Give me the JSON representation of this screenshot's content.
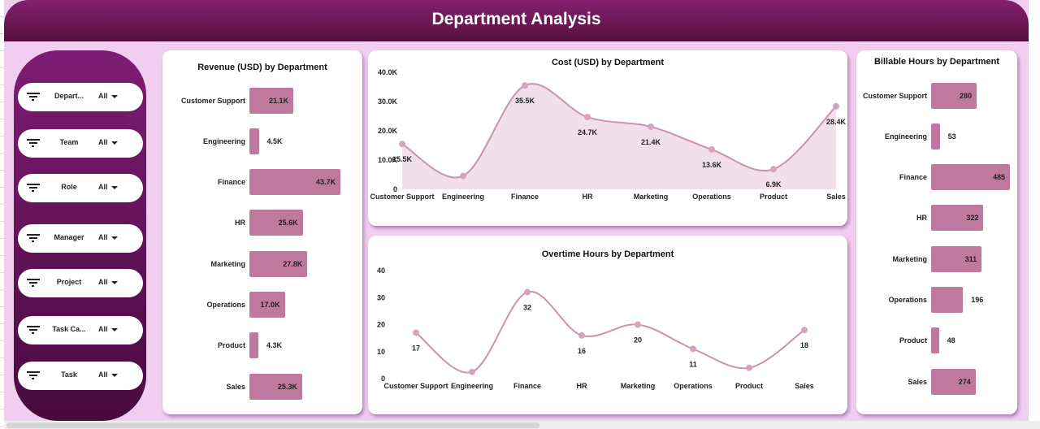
{
  "header": {
    "title": "Department Analysis"
  },
  "slicers": [
    {
      "label": "Depart...",
      "value": "All"
    },
    {
      "label": "Team",
      "value": "All"
    },
    {
      "label": "Role",
      "value": "All"
    },
    {
      "label": "Manager",
      "value": "All"
    },
    {
      "label": "Project",
      "value": "All"
    },
    {
      "label": "Task Ca...",
      "value": "All"
    },
    {
      "label": "Task",
      "value": "All"
    }
  ],
  "colors": {
    "header": "#7b1a6c",
    "bar": "#c0799e",
    "line": "#c993b0",
    "background": "#f1cef0"
  },
  "chart_data": [
    {
      "type": "bar",
      "title": "Revenue (USD) by Department",
      "orientation": "horizontal",
      "categories": [
        "Customer Support",
        "Engineering",
        "Finance",
        "HR",
        "Marketing",
        "Operations",
        "Product",
        "Sales"
      ],
      "values": [
        21.1,
        4.5,
        43.7,
        25.6,
        27.8,
        17.0,
        4.3,
        25.3
      ],
      "labels": [
        "21.1K",
        "4.5K",
        "43.7K",
        "25.6K",
        "27.8K",
        "17.0K",
        "4.3K",
        "25.3K"
      ],
      "unit": "K"
    },
    {
      "type": "area",
      "title": "Cost (USD) by Department",
      "categories": [
        "Customer Support",
        "Engineering",
        "Finance",
        "HR",
        "Marketing",
        "Operations",
        "Product",
        "Sales"
      ],
      "values": [
        15.5,
        4.6,
        35.5,
        24.7,
        21.4,
        13.6,
        6.9,
        28.4
      ],
      "labels": [
        "15.5K",
        "",
        "35.5K",
        "24.7K",
        "21.4K",
        "13.6K",
        "6.9K",
        "28.4K"
      ],
      "yticks": [
        "0",
        "10.0K",
        "20.0K",
        "30.0K",
        "40.0K"
      ],
      "ylim": [
        0,
        40
      ],
      "unit": "K"
    },
    {
      "type": "line",
      "title": "Overtime Hours by Department",
      "categories": [
        "Customer Support",
        "Engineering",
        "Finance",
        "HR",
        "Marketing",
        "Operations",
        "Product",
        "Sales"
      ],
      "values": [
        17,
        2.5,
        32,
        16,
        20,
        11,
        4,
        18
      ],
      "labels": [
        "17",
        "",
        "32",
        "16",
        "20",
        "11",
        "",
        "18"
      ],
      "yticks": [
        "0",
        "10",
        "20",
        "30",
        "40"
      ],
      "ylim": [
        0,
        40
      ]
    },
    {
      "type": "bar",
      "title": "Billable Hours by Department",
      "orientation": "horizontal",
      "categories": [
        "Customer Support",
        "Engineering",
        "Finance",
        "HR",
        "Marketing",
        "Operations",
        "Product",
        "Sales"
      ],
      "values": [
        280,
        53,
        485,
        322,
        311,
        196,
        48,
        274
      ],
      "labels": [
        "280",
        "53",
        "485",
        "322",
        "311",
        "196",
        "48",
        "274"
      ]
    }
  ]
}
